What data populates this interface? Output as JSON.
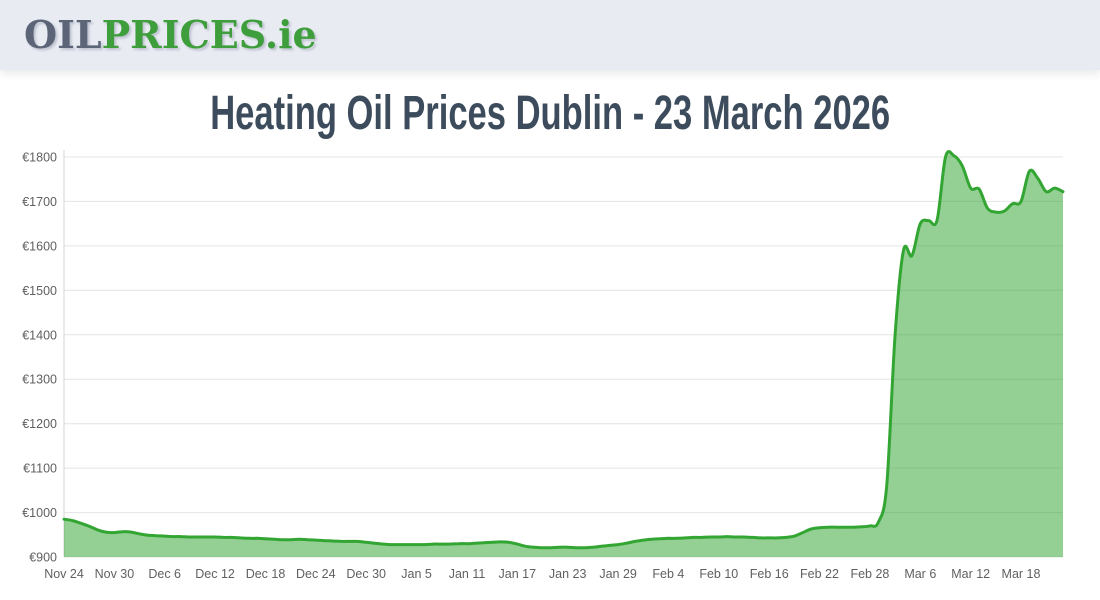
{
  "header": {
    "logo": {
      "part1": "OIL",
      "part2": "PRICES",
      "part3": ".ie"
    },
    "colors": {
      "background": "#e9ebf3",
      "oil": "#5b6577",
      "green": "#3f9e3c"
    }
  },
  "title": {
    "text": "Heating Oil Prices Dublin - 23 March 2026",
    "color": "#3d4c5c"
  },
  "chart_data": {
    "type": "area",
    "title": "Heating Oil Prices Dublin - 23 March 2026",
    "currency_prefix": "€",
    "ylim": [
      900,
      1800
    ],
    "grid": "horizontal",
    "legend": "none",
    "line_color": "#32a532",
    "fill_color": "rgba(50,165,50,0.52)",
    "grid_color": "#e4e4e4",
    "axis_color": "#d4d4d4",
    "label_color": "#606060",
    "y_tick_values": [
      900,
      1000,
      1100,
      1200,
      1300,
      1400,
      1500,
      1600,
      1700,
      1800
    ],
    "y_tick_labels": [
      "€900",
      "€1000",
      "€1100",
      "€1200",
      "€1300",
      "€1400",
      "€1500",
      "€1600",
      "€1700",
      "€1800"
    ],
    "x_tick_interval": 6,
    "x_tick_labels": [
      "Nov 24",
      "Nov 30",
      "Dec 6",
      "Dec 12",
      "Dec 18",
      "Dec 24",
      "Dec 30",
      "Jan 5",
      "Jan 11",
      "Jan 17",
      "Jan 23",
      "Jan 29",
      "Feb 4",
      "Feb 10",
      "Feb 16",
      "Feb 22",
      "Feb 28",
      "Mar 6",
      "Mar 12",
      "Mar 18"
    ],
    "x": [
      "Nov 24",
      "Nov 25",
      "Nov 26",
      "Nov 27",
      "Nov 28",
      "Nov 29",
      "Nov 30",
      "Dec 1",
      "Dec 2",
      "Dec 3",
      "Dec 4",
      "Dec 5",
      "Dec 6",
      "Dec 7",
      "Dec 8",
      "Dec 9",
      "Dec 10",
      "Dec 11",
      "Dec 12",
      "Dec 13",
      "Dec 14",
      "Dec 15",
      "Dec 16",
      "Dec 17",
      "Dec 18",
      "Dec 19",
      "Dec 20",
      "Dec 21",
      "Dec 22",
      "Dec 23",
      "Dec 24",
      "Dec 25",
      "Dec 26",
      "Dec 27",
      "Dec 28",
      "Dec 29",
      "Dec 30",
      "Dec 31",
      "Jan 1",
      "Jan 2",
      "Jan 3",
      "Jan 4",
      "Jan 5",
      "Jan 6",
      "Jan 7",
      "Jan 8",
      "Jan 9",
      "Jan 10",
      "Jan 11",
      "Jan 12",
      "Jan 13",
      "Jan 14",
      "Jan 15",
      "Jan 16",
      "Jan 17",
      "Jan 18",
      "Jan 19",
      "Jan 20",
      "Jan 21",
      "Jan 22",
      "Jan 23",
      "Jan 24",
      "Jan 25",
      "Jan 26",
      "Jan 27",
      "Jan 28",
      "Jan 29",
      "Jan 30",
      "Jan 31",
      "Feb 1",
      "Feb 2",
      "Feb 3",
      "Feb 4",
      "Feb 5",
      "Feb 6",
      "Feb 7",
      "Feb 8",
      "Feb 9",
      "Feb 10",
      "Feb 11",
      "Feb 12",
      "Feb 13",
      "Feb 14",
      "Feb 15",
      "Feb 16",
      "Feb 17",
      "Feb 18",
      "Feb 19",
      "Feb 20",
      "Feb 21",
      "Feb 22",
      "Feb 23",
      "Feb 24",
      "Feb 25",
      "Feb 26",
      "Feb 27",
      "Feb 28",
      "Mar 1",
      "Mar 2",
      "Mar 3",
      "Mar 4",
      "Mar 5",
      "Mar 6",
      "Mar 7",
      "Mar 8",
      "Mar 9",
      "Mar 10",
      "Mar 11",
      "Mar 12",
      "Mar 13",
      "Mar 14",
      "Mar 15",
      "Mar 16",
      "Mar 17",
      "Mar 18",
      "Mar 19",
      "Mar 20",
      "Mar 21",
      "Mar 22",
      "Mar 23"
    ],
    "values": [
      985,
      982,
      976,
      969,
      961,
      956,
      955,
      957,
      956,
      952,
      949,
      948,
      947,
      946,
      946,
      945,
      945,
      945,
      945,
      944,
      944,
      943,
      942,
      942,
      941,
      940,
      939,
      939,
      940,
      939,
      938,
      937,
      936,
      935,
      935,
      935,
      933,
      931,
      929,
      928,
      928,
      928,
      928,
      928,
      929,
      929,
      929,
      930,
      930,
      931,
      932,
      933,
      934,
      933,
      929,
      924,
      922,
      921,
      921,
      922,
      922,
      921,
      921,
      922,
      924,
      926,
      928,
      931,
      935,
      938,
      940,
      941,
      942,
      942,
      943,
      944,
      944,
      945,
      945,
      946,
      945,
      945,
      944,
      943,
      943,
      943,
      944,
      947,
      955,
      963,
      966,
      967,
      967,
      967,
      967,
      968,
      970,
      978,
      1060,
      1400,
      1590,
      1578,
      1650,
      1657,
      1658,
      1800,
      1803,
      1780,
      1730,
      1728,
      1685,
      1676,
      1678,
      1695,
      1700,
      1768,
      1752,
      1722,
      1730,
      1722
    ]
  }
}
